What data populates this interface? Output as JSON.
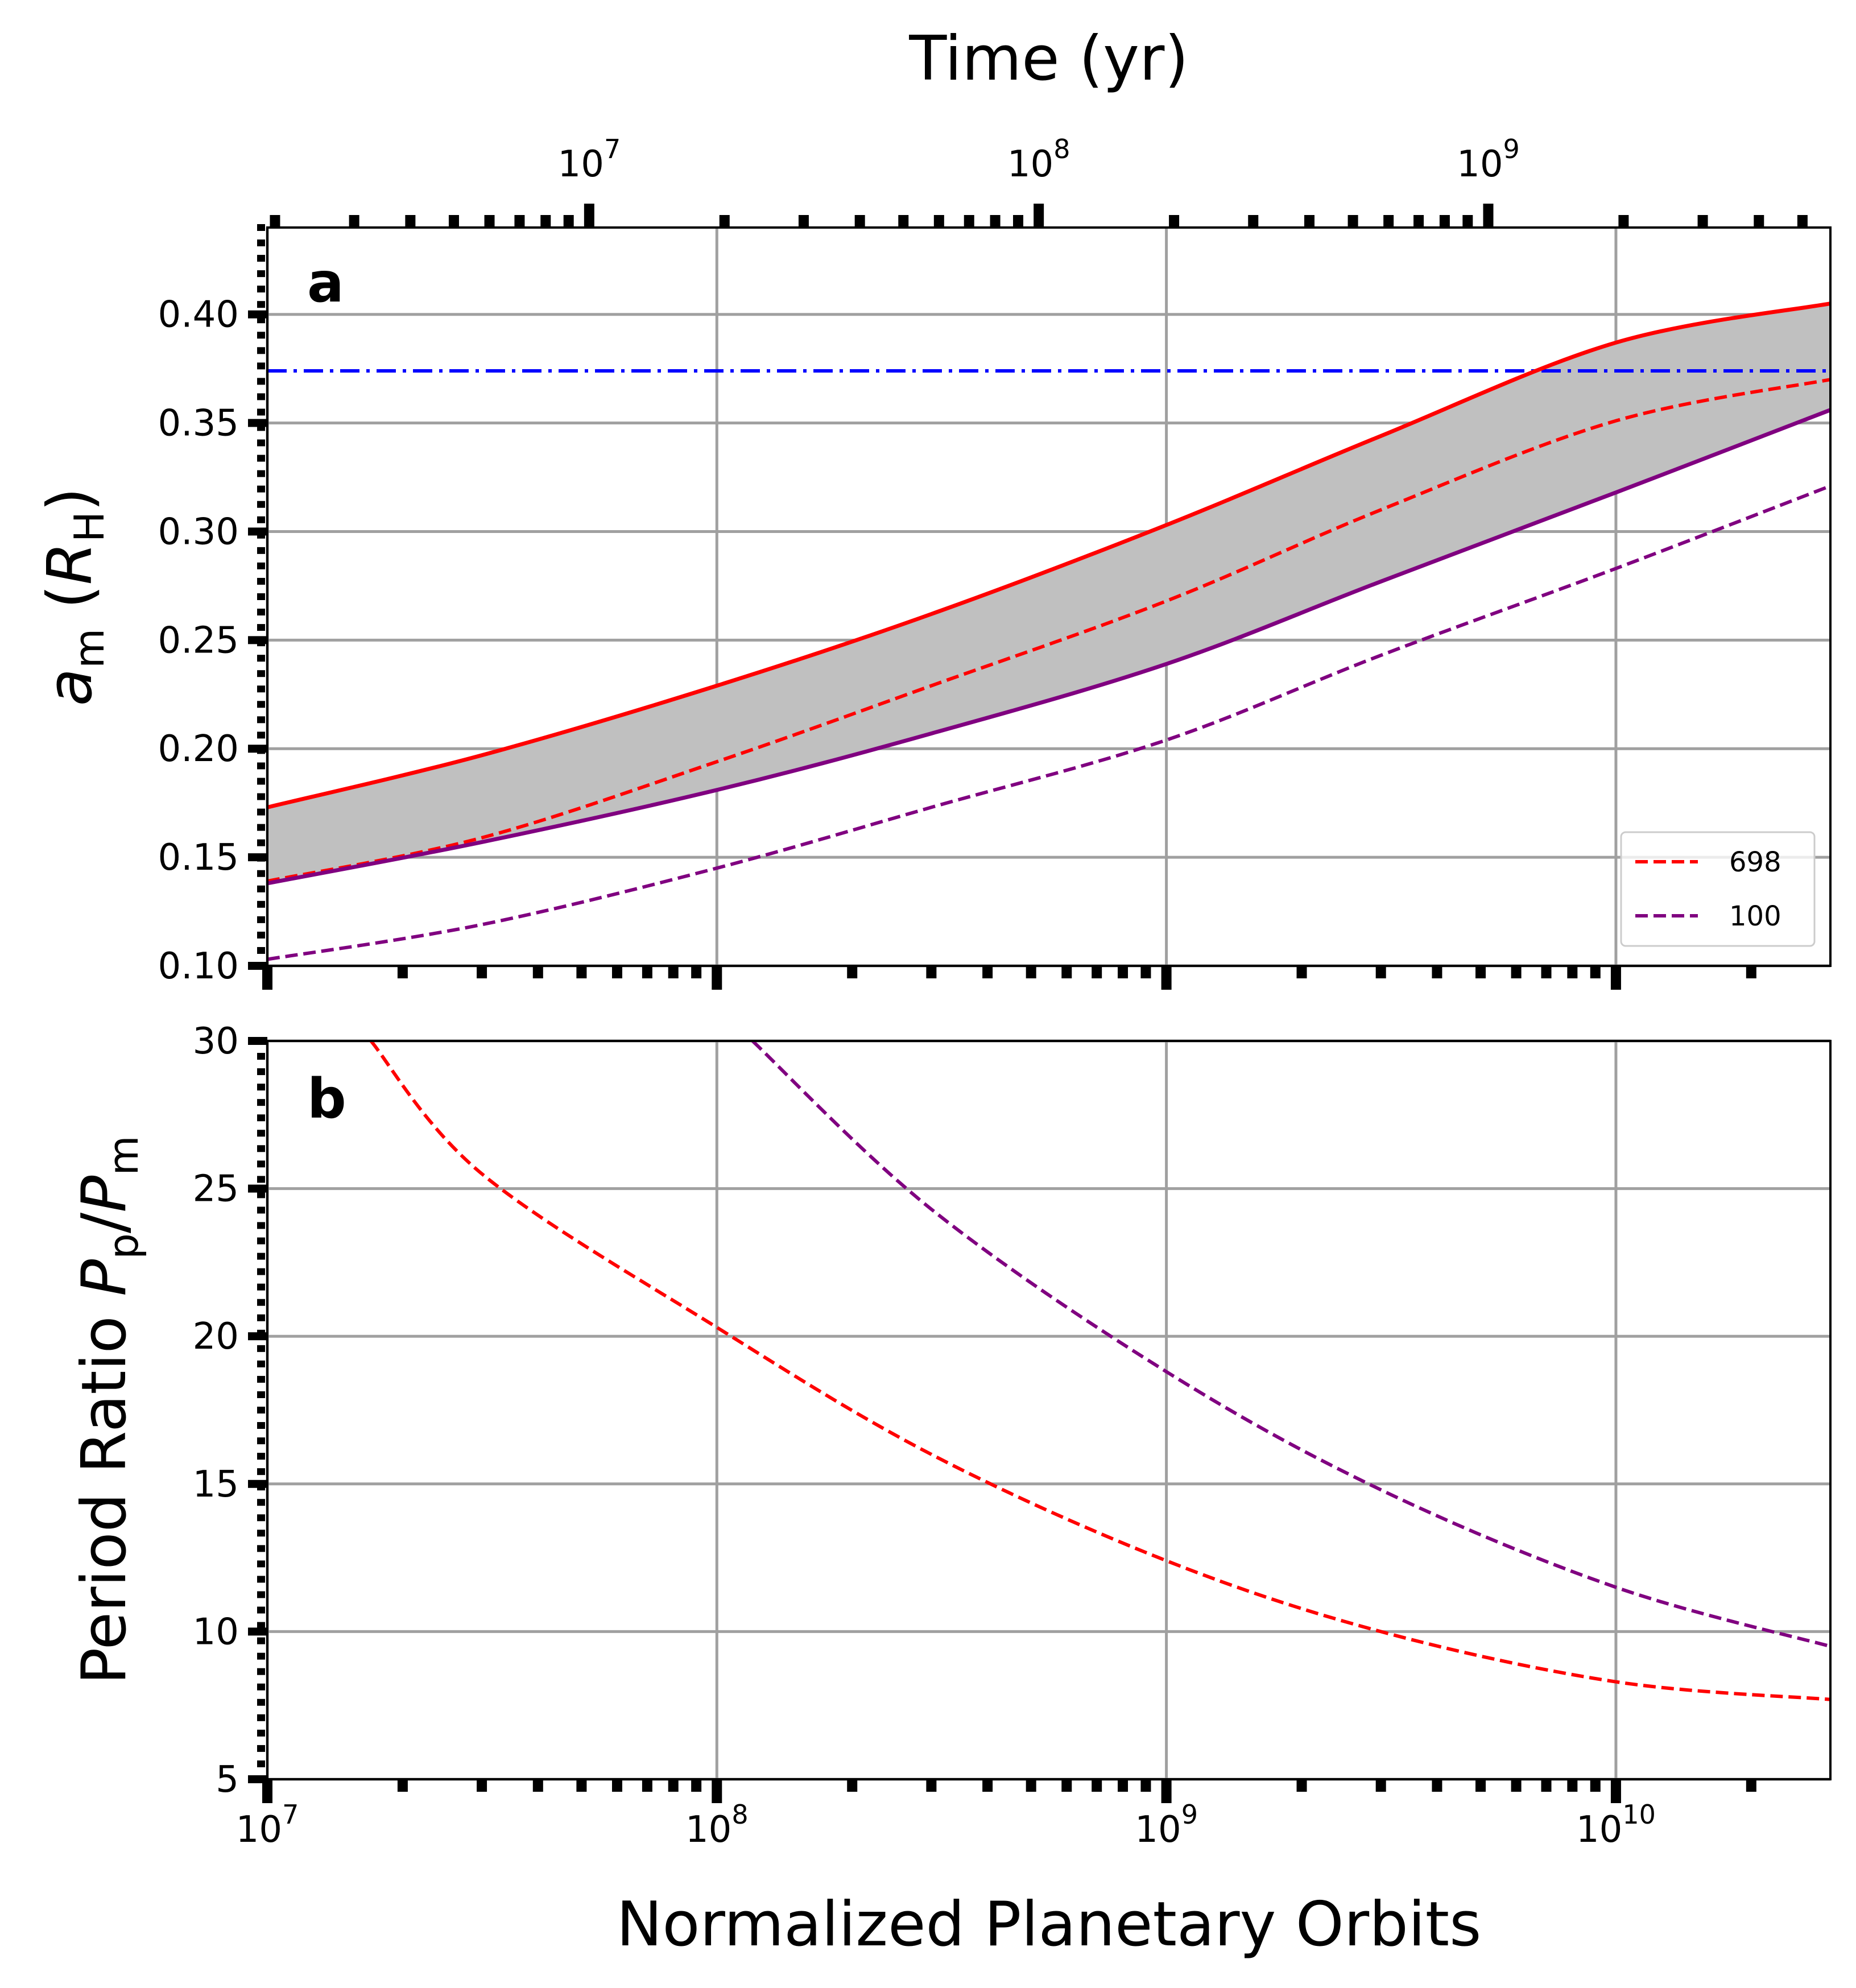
{
  "chart_data": [
    {
      "panel": "a",
      "panel_label": "a",
      "type": "line",
      "x_scale": "log",
      "xlim": [
        10000000,
        30000000000
      ],
      "ylim": [
        0.1,
        0.44
      ],
      "ylabel": {
        "base": "a",
        "sub": "m",
        "unit_open": " (",
        "unit_base": "R",
        "unit_sub": "H",
        "unit_close": ")"
      },
      "xticks": [
        {
          "exp": "7"
        },
        {
          "exp": "8"
        },
        {
          "exp": "9"
        },
        {
          "exp": "10"
        }
      ],
      "yticks": [
        "0.10",
        "0.15",
        "0.20",
        "0.25",
        "0.30",
        "0.35",
        "0.40"
      ],
      "ytick_values": [
        0.1,
        0.15,
        0.2,
        0.25,
        0.3,
        0.35,
        0.4
      ],
      "top_axis": {
        "label": "Time (yr)",
        "scale": "log",
        "ticks": [
          {
            "exp": "7",
            "value": 10000000
          },
          {
            "exp": "8",
            "value": 100000000
          },
          {
            "exp": "9",
            "value": 1000000000
          }
        ],
        "orbits_per_year": 5.2
      },
      "grid": true,
      "horizontal_line": {
        "y": 0.374,
        "style": "dash-dot",
        "color": "#0000ff"
      },
      "shaded_band": {
        "color": "#c0c0c0",
        "between": [
          "698-solid",
          "100-solid"
        ]
      },
      "series": [
        {
          "id": "698-solid",
          "color": "#ff0000",
          "style": "solid",
          "x": [
            10000000,
            30000000,
            100000000,
            300000000,
            1000000000,
            3000000000,
            10000000000,
            30000000000
          ],
          "y": [
            0.173,
            0.197,
            0.229,
            0.262,
            0.303,
            0.344,
            0.387,
            0.405
          ]
        },
        {
          "id": "698-dashed",
          "name": "698",
          "color": "#ff0000",
          "style": "dashed",
          "x": [
            10000000,
            30000000,
            100000000,
            300000000,
            1000000000,
            3000000000,
            10000000000,
            30000000000
          ],
          "y": [
            0.139,
            0.159,
            0.194,
            0.229,
            0.268,
            0.31,
            0.351,
            0.37
          ]
        },
        {
          "id": "100-solid",
          "color": "#800080",
          "style": "solid",
          "x": [
            10000000,
            30000000,
            100000000,
            300000000,
            1000000000,
            3000000000,
            10000000000,
            30000000000
          ],
          "y": [
            0.138,
            0.157,
            0.181,
            0.207,
            0.239,
            0.277,
            0.318,
            0.356
          ]
        },
        {
          "id": "100-dashed",
          "name": "100",
          "color": "#800080",
          "style": "dashed",
          "x": [
            10000000,
            30000000,
            100000000,
            300000000,
            1000000000,
            3000000000,
            10000000000,
            30000000000
          ],
          "y": [
            0.103,
            0.119,
            0.145,
            0.173,
            0.204,
            0.243,
            0.283,
            0.321
          ]
        }
      ],
      "legend": {
        "location": "lower right",
        "entries": [
          "698",
          "100"
        ]
      }
    },
    {
      "panel": "b",
      "panel_label": "b",
      "type": "line",
      "x_scale": "log",
      "xlim": [
        10000000,
        30000000000
      ],
      "ylim": [
        5,
        30
      ],
      "xlabel": "Normalized Planetary Orbits",
      "ylabel": {
        "prefix": "Period Ratio ",
        "num_base": "P",
        "num_sub": "p",
        "slash": "/",
        "den_base": "P",
        "den_sub": "m"
      },
      "xticks": [
        {
          "exp": "7"
        },
        {
          "exp": "8"
        },
        {
          "exp": "9"
        },
        {
          "exp": "10"
        }
      ],
      "yticks": [
        "5",
        "10",
        "15",
        "20",
        "25",
        "30"
      ],
      "ytick_values": [
        5,
        10,
        15,
        20,
        25,
        30
      ],
      "grid": true,
      "series": [
        {
          "id": "698-dashed",
          "name": "698",
          "color": "#ff0000",
          "style": "dashed",
          "x": [
            17000000,
            30000000,
            100000000,
            300000000,
            1000000000,
            3000000000,
            10000000000,
            30000000000
          ],
          "y": [
            30.0,
            25.5,
            20.3,
            16.0,
            12.4,
            10.0,
            8.3,
            7.7
          ]
        },
        {
          "id": "100-dashed",
          "name": "100",
          "color": "#800080",
          "style": "dashed",
          "x": [
            120000000,
            300000000,
            1000000000,
            3000000000,
            10000000000,
            30000000000
          ],
          "y": [
            30.0,
            24.3,
            18.8,
            14.8,
            11.5,
            9.5
          ]
        }
      ]
    }
  ]
}
